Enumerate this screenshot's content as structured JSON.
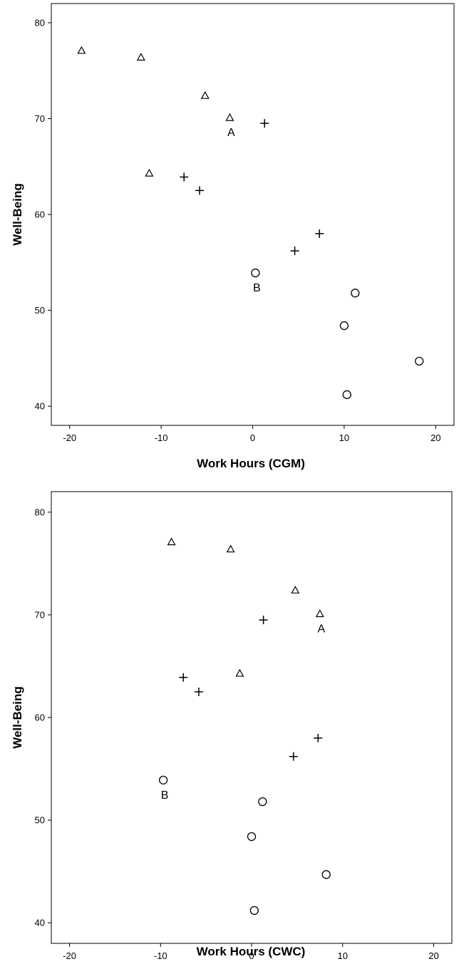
{
  "chart_data": [
    {
      "type": "scatter",
      "xlabel": "Work Hours (CGM)",
      "ylabel": "Well-Being",
      "xlim": [
        -22,
        22
      ],
      "ylim": [
        38,
        82
      ],
      "xticks": [
        "-20",
        "-10",
        "0",
        "10",
        "20"
      ],
      "yticks": [
        "40",
        "50",
        "60",
        "70",
        "80"
      ],
      "grid": false,
      "legend": "none",
      "marker_color": "#000000",
      "series": [
        {
          "marker": "triangle",
          "points": [
            [
              -18.7,
              77.1
            ],
            [
              -12.2,
              76.4
            ],
            [
              -5.2,
              72.4
            ],
            [
              -2.5,
              70.1
            ],
            [
              -11.3,
              64.3
            ]
          ]
        },
        {
          "marker": "plus",
          "points": [
            [
              1.3,
              69.5
            ],
            [
              -7.5,
              63.9
            ],
            [
              -5.8,
              62.5
            ],
            [
              7.3,
              58.0
            ],
            [
              4.6,
              56.2
            ]
          ]
        },
        {
          "marker": "circle",
          "points": [
            [
              0.3,
              53.9
            ],
            [
              11.2,
              51.8
            ],
            [
              10.0,
              48.4
            ],
            [
              18.2,
              44.7
            ],
            [
              10.3,
              41.2
            ]
          ]
        }
      ],
      "annotations": [
        {
          "text": "A",
          "x": -2.5,
          "y": 70.1
        },
        {
          "text": "B",
          "x": 0.3,
          "y": 53.9
        }
      ]
    },
    {
      "type": "scatter",
      "xlabel": "Work Hours (CWC)",
      "ylabel": "Well-Being",
      "xlim": [
        -22,
        22
      ],
      "ylim": [
        38,
        82
      ],
      "xticks": [
        "-20",
        "-10",
        "0",
        "10",
        "20"
      ],
      "yticks": [
        "40",
        "50",
        "60",
        "70",
        "80"
      ],
      "grid": false,
      "legend": "none",
      "marker_color": "#000000",
      "series": [
        {
          "marker": "triangle",
          "points": [
            [
              -8.8,
              77.1
            ],
            [
              -2.3,
              76.4
            ],
            [
              4.8,
              72.4
            ],
            [
              7.5,
              70.1
            ],
            [
              -1.3,
              64.3
            ]
          ]
        },
        {
          "marker": "plus",
          "points": [
            [
              1.3,
              69.5
            ],
            [
              -7.5,
              63.9
            ],
            [
              -5.8,
              62.5
            ],
            [
              7.3,
              58.0
            ],
            [
              4.6,
              56.2
            ]
          ]
        },
        {
          "marker": "circle",
          "points": [
            [
              -9.7,
              53.9
            ],
            [
              1.2,
              51.8
            ],
            [
              0.0,
              48.4
            ],
            [
              8.2,
              44.7
            ],
            [
              0.3,
              41.2
            ]
          ]
        }
      ],
      "annotations": [
        {
          "text": "A",
          "x": 7.5,
          "y": 70.1
        },
        {
          "text": "B",
          "x": -9.7,
          "y": 53.9
        }
      ]
    }
  ]
}
